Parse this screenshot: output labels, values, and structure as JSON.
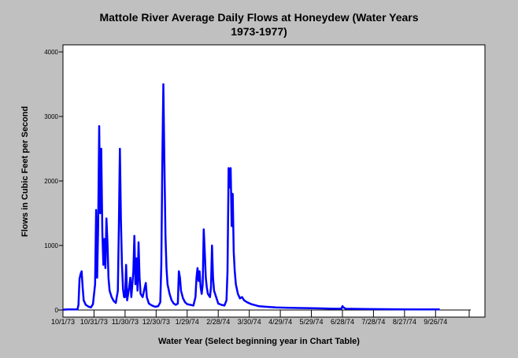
{
  "chart_data": {
    "type": "line",
    "title_line1": "Mattole River Average Daily Flows at Honeydew (Water Years",
    "title_line2": "1973-1977)",
    "xlabel": "Water Year (Select beginning year in Chart Table)",
    "ylabel": "Flows in Cubic Feet per Second",
    "ylim": [
      0,
      4000
    ],
    "xlim": [
      "1973-10-01",
      "1974-10-30"
    ],
    "grid": false,
    "legend": "none",
    "line_color": "#0000ff",
    "y_ticks": [
      0,
      1000,
      2000,
      3000,
      4000
    ],
    "x_ticks": [
      {
        "date": "1973-10-01",
        "label": "10/1/73"
      },
      {
        "date": "1973-10-31",
        "label": "10/31/73"
      },
      {
        "date": "1973-11-30",
        "label": "11/30/73"
      },
      {
        "date": "1973-12-30",
        "label": "12/30/73"
      },
      {
        "date": "1974-01-29",
        "label": "1/29/74"
      },
      {
        "date": "1974-02-28",
        "label": "2/28/74"
      },
      {
        "date": "1974-03-30",
        "label": "3/30/74"
      },
      {
        "date": "1974-04-29",
        "label": "4/29/74"
      },
      {
        "date": "1974-05-29",
        "label": "5/29/74"
      },
      {
        "date": "1974-06-28",
        "label": "6/28/74"
      },
      {
        "date": "1974-07-28",
        "label": "7/28/74"
      },
      {
        "date": "1974-08-27",
        "label": "8/27/74"
      },
      {
        "date": "1974-09-26",
        "label": "9/26/74"
      }
    ],
    "series": [
      {
        "points": [
          [
            "1973-10-01",
            5
          ],
          [
            "1973-10-05",
            10
          ],
          [
            "1973-10-10",
            8
          ],
          [
            "1973-10-15",
            8
          ],
          [
            "1973-10-16",
            80
          ],
          [
            "1973-10-17",
            480
          ],
          [
            "1973-10-18",
            560
          ],
          [
            "1973-10-19",
            600
          ],
          [
            "1973-10-20",
            350
          ],
          [
            "1973-10-21",
            150
          ],
          [
            "1973-10-23",
            80
          ],
          [
            "1973-10-26",
            50
          ],
          [
            "1973-10-28",
            40
          ],
          [
            "1973-10-30",
            90
          ],
          [
            "1973-11-01",
            400
          ],
          [
            "1973-11-02",
            1550
          ],
          [
            "1973-11-03",
            500
          ],
          [
            "1973-11-04",
            1300
          ],
          [
            "1973-11-05",
            2850
          ],
          [
            "1973-11-06",
            1500
          ],
          [
            "1973-11-07",
            2500
          ],
          [
            "1973-11-08",
            1200
          ],
          [
            "1973-11-09",
            700
          ],
          [
            "1973-11-10",
            1100
          ],
          [
            "1973-11-11",
            650
          ],
          [
            "1973-11-12",
            1420
          ],
          [
            "1973-11-13",
            1050
          ],
          [
            "1973-11-14",
            500
          ],
          [
            "1973-11-15",
            300
          ],
          [
            "1973-11-17",
            200
          ],
          [
            "1973-11-19",
            140
          ],
          [
            "1973-11-21",
            110
          ],
          [
            "1973-11-23",
            300
          ],
          [
            "1973-11-24",
            1300
          ],
          [
            "1973-11-25",
            2500
          ],
          [
            "1973-11-26",
            1400
          ],
          [
            "1973-11-27",
            700
          ],
          [
            "1973-11-28",
            320
          ],
          [
            "1973-11-29",
            200
          ],
          [
            "1973-11-30",
            200
          ],
          [
            "1973-12-01",
            700
          ],
          [
            "1973-12-02",
            150
          ],
          [
            "1973-12-04",
            350
          ],
          [
            "1973-12-05",
            500
          ],
          [
            "1973-12-06",
            200
          ],
          [
            "1973-12-08",
            600
          ],
          [
            "1973-12-09",
            1150
          ],
          [
            "1973-12-10",
            400
          ],
          [
            "1973-12-11",
            800
          ],
          [
            "1973-12-12",
            300
          ],
          [
            "1973-12-13",
            1050
          ],
          [
            "1973-12-14",
            500
          ],
          [
            "1973-12-15",
            250
          ],
          [
            "1973-12-17",
            200
          ],
          [
            "1973-12-19",
            350
          ],
          [
            "1973-12-20",
            420
          ],
          [
            "1973-12-21",
            200
          ],
          [
            "1973-12-23",
            100
          ],
          [
            "1973-12-26",
            70
          ],
          [
            "1973-12-29",
            50
          ],
          [
            "1974-01-01",
            60
          ],
          [
            "1974-01-03",
            120
          ],
          [
            "1974-01-04",
            700
          ],
          [
            "1974-01-05",
            2300
          ],
          [
            "1974-01-06",
            3500
          ],
          [
            "1974-01-07",
            2300
          ],
          [
            "1974-01-08",
            1150
          ],
          [
            "1974-01-09",
            650
          ],
          [
            "1974-01-10",
            400
          ],
          [
            "1974-01-12",
            250
          ],
          [
            "1974-01-14",
            150
          ],
          [
            "1974-01-16",
            100
          ],
          [
            "1974-01-18",
            80
          ],
          [
            "1974-01-20",
            100
          ],
          [
            "1974-01-21",
            600
          ],
          [
            "1974-01-22",
            500
          ],
          [
            "1974-01-23",
            300
          ],
          [
            "1974-01-25",
            180
          ],
          [
            "1974-01-27",
            120
          ],
          [
            "1974-01-29",
            90
          ],
          [
            "1974-02-01",
            80
          ],
          [
            "1974-02-04",
            70
          ],
          [
            "1974-02-06",
            200
          ],
          [
            "1974-02-07",
            500
          ],
          [
            "1974-02-08",
            650
          ],
          [
            "1974-02-09",
            450
          ],
          [
            "1974-02-10",
            600
          ],
          [
            "1974-02-11",
            350
          ],
          [
            "1974-02-12",
            250
          ],
          [
            "1974-02-13",
            400
          ],
          [
            "1974-02-14",
            1250
          ],
          [
            "1974-02-15",
            900
          ],
          [
            "1974-02-16",
            500
          ],
          [
            "1974-02-17",
            350
          ],
          [
            "1974-02-18",
            250
          ],
          [
            "1974-02-20",
            200
          ],
          [
            "1974-02-21",
            350
          ],
          [
            "1974-02-22",
            1000
          ],
          [
            "1974-02-23",
            500
          ],
          [
            "1974-02-24",
            300
          ],
          [
            "1974-02-26",
            200
          ],
          [
            "1974-02-28",
            100
          ],
          [
            "1974-03-03",
            80
          ],
          [
            "1974-03-06",
            70
          ],
          [
            "1974-03-08",
            150
          ],
          [
            "1974-03-09",
            600
          ],
          [
            "1974-03-10",
            2200
          ],
          [
            "1974-03-11",
            1900
          ],
          [
            "1974-03-12",
            2200
          ],
          [
            "1974-03-13",
            1300
          ],
          [
            "1974-03-14",
            1800
          ],
          [
            "1974-03-15",
            900
          ],
          [
            "1974-03-16",
            600
          ],
          [
            "1974-03-17",
            400
          ],
          [
            "1974-03-19",
            250
          ],
          [
            "1974-03-21",
            180
          ],
          [
            "1974-03-23",
            200
          ],
          [
            "1974-03-25",
            150
          ],
          [
            "1974-03-28",
            120
          ],
          [
            "1974-04-01",
            90
          ],
          [
            "1974-04-08",
            60
          ],
          [
            "1974-04-15",
            50
          ],
          [
            "1974-04-25",
            40
          ],
          [
            "1974-05-05",
            35
          ],
          [
            "1974-05-20",
            30
          ],
          [
            "1974-06-05",
            25
          ],
          [
            "1974-06-20",
            20
          ],
          [
            "1974-06-27",
            20
          ],
          [
            "1974-06-28",
            60
          ],
          [
            "1974-06-29",
            40
          ],
          [
            "1974-07-01",
            20
          ],
          [
            "1974-07-20",
            15
          ],
          [
            "1974-08-10",
            12
          ],
          [
            "1974-08-30",
            10
          ],
          [
            "1974-09-15",
            8
          ],
          [
            "1974-09-30",
            8
          ]
        ]
      }
    ]
  }
}
